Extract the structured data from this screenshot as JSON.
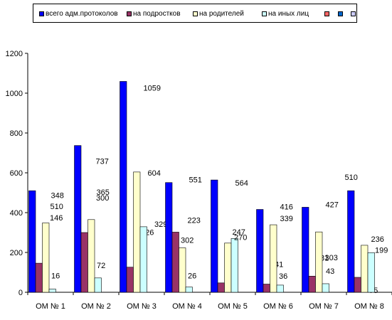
{
  "chart_data": {
    "type": "bar",
    "categories": [
      "ОМ № 1",
      "ОМ № 2",
      "ОМ № 3",
      "ОМ № 4",
      "ОМ № 5",
      "ОМ № 6",
      "ОМ № 7",
      "ОМ № 8"
    ],
    "series": [
      {
        "name": "всего адм.протоколов",
        "color": "#0000ff",
        "values": [
          510,
          737,
          1059,
          551,
          564,
          416,
          427,
          510
        ]
      },
      {
        "name": "на подростков",
        "color": "#993366",
        "values": [
          146,
          300,
          126,
          302,
          47,
          41,
          81,
          75
        ]
      },
      {
        "name": "на родителей",
        "color": "#ffffcc",
        "values": [
          348,
          365,
          604,
          223,
          247,
          339,
          303,
          236
        ]
      },
      {
        "name": "на иных лиц",
        "color": "#ccffff",
        "values": [
          16,
          72,
          329,
          26,
          270,
          36,
          43,
          199
        ]
      }
    ],
    "extra_legend_colors": [
      "#ff6666",
      "#0066cc",
      "#ccccff"
    ],
    "data_labels": [
      [
        "510",
        "146",
        "348",
        "16"
      ],
      [
        "737",
        "300",
        "365",
        "72"
      ],
      [
        "1059",
        "126",
        "604",
        "329"
      ],
      [
        "551",
        "302",
        "223",
        "26"
      ],
      [
        "564",
        "47",
        "247",
        "270"
      ],
      [
        "416",
        "41",
        "339",
        "36"
      ],
      [
        "427",
        "81",
        "303",
        "43"
      ],
      [
        "510",
        "75",
        "236",
        "199"
      ]
    ],
    "y_ticks": [
      "0",
      "200",
      "400",
      "600",
      "800",
      "1000",
      "1200"
    ],
    "ylim": [
      0,
      1200
    ],
    "grid": false,
    "legend_position": "top",
    "title": "",
    "xlabel": "",
    "ylabel": ""
  }
}
